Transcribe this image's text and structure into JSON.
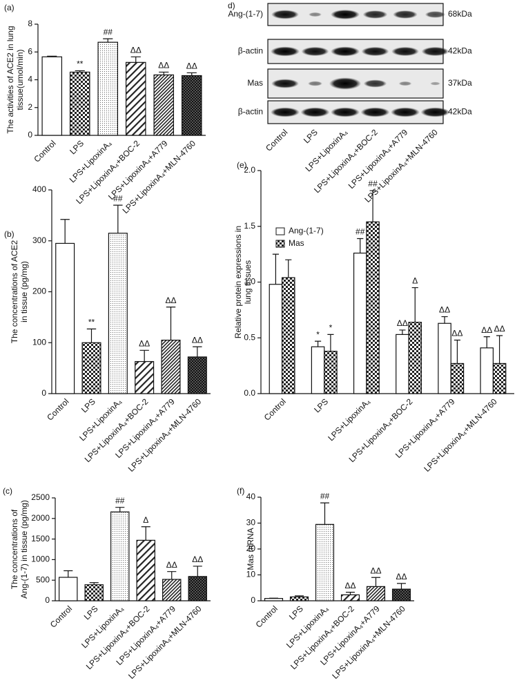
{
  "chart_data": [
    {
      "type": "bar",
      "panel": "(a)",
      "y_label": [
        "The activities of ACE2 in lung",
        "tissue(umol/min)"
      ],
      "categories": [
        "Control",
        "LPS",
        "LPS+LipoxinA₄",
        "LPS+LipoxinA₄+BOC-2",
        "LPS+LipoxinA₄+A779",
        "LPS+LipoxinA₄+MLN-4760"
      ],
      "values": [
        5.65,
        4.55,
        6.7,
        5.25,
        4.35,
        4.3
      ],
      "errors": [
        0.05,
        0.1,
        0.25,
        0.4,
        0.2,
        0.2
      ],
      "annotations": [
        null,
        "**",
        "##",
        "ΔΔ",
        "ΔΔ",
        "ΔΔ"
      ],
      "patterns": [
        "white",
        "check",
        "dots",
        "hatch",
        "dense-hatch",
        "dark-check"
      ],
      "ylim": [
        0,
        8
      ],
      "yticks": [
        0,
        2,
        4,
        6,
        8
      ]
    },
    {
      "type": "bar",
      "panel": "(b)",
      "y_label": [
        "The concentrations of ACE2",
        "in tissue (pg/mg)"
      ],
      "categories": [
        "Control",
        "LPS",
        "LPS+LipoxinA₄",
        "LPS+LipoxinA₄+BOC-2",
        "LPS+LipoxinA₄+A779",
        "LPS+LipoxinA₄+MLN-4760"
      ],
      "values": [
        295,
        100,
        315,
        63,
        105,
        72
      ],
      "errors": [
        47,
        27,
        55,
        22,
        65,
        20
      ],
      "annotations": [
        null,
        "**",
        "##",
        "ΔΔ",
        "ΔΔ",
        "ΔΔ"
      ],
      "patterns": [
        "white",
        "check",
        "dots",
        "hatch",
        "dense-hatch",
        "dark-check"
      ],
      "ylim": [
        0,
        400
      ],
      "yticks": [
        0,
        100,
        200,
        300,
        400
      ]
    },
    {
      "type": "bar",
      "panel": "(c)",
      "y_label": [
        "The concentrations of",
        "Ang-(1-7) in tissue (pg/mg)"
      ],
      "categories": [
        "Control",
        "LPS",
        "LPS+LipoxinA₄",
        "LPS+LipoxinA₄+BOC-2",
        "LPS+LipoxinA₄+A779",
        "LPS+LipoxinA₄+MLN-4760"
      ],
      "values": [
        570,
        390,
        2160,
        1470,
        520,
        590
      ],
      "errors": [
        160,
        50,
        110,
        330,
        190,
        250
      ],
      "annotations": [
        null,
        null,
        "##",
        "Δ",
        "ΔΔ",
        "ΔΔ"
      ],
      "patterns": [
        "white",
        "check",
        "dots",
        "hatch",
        "dense-hatch",
        "dark-check"
      ],
      "ylim": [
        0,
        2500
      ],
      "yticks": [
        0,
        500,
        1000,
        1500,
        2000,
        2500
      ]
    },
    {
      "type": "grouped_bar",
      "panel": "(e)",
      "y_label": [
        "Relative protein expressions in",
        "lung tissues"
      ],
      "categories": [
        "Control",
        "LPS",
        "LPS+LipoxinA₄",
        "LPS+LipoxinA₄+BOC-2",
        "LPS+LipoxinA₄+A779",
        "LPS+LipoxinA₄+MLN-4760"
      ],
      "series": [
        {
          "name": "Ang-(1-7)",
          "pattern": "white",
          "values": [
            0.98,
            0.42,
            1.26,
            0.53,
            0.63,
            0.41
          ],
          "errors": [
            0.27,
            0.05,
            0.13,
            0.04,
            0.06,
            0.1
          ],
          "annotations": [
            null,
            "*",
            "##",
            "ΔΔ",
            "ΔΔ",
            "ΔΔ"
          ]
        },
        {
          "name": "Mas",
          "pattern": "check",
          "values": [
            1.04,
            0.38,
            1.54,
            0.64,
            0.27,
            0.27
          ],
          "errors": [
            0.16,
            0.15,
            0.28,
            0.31,
            0.21,
            0.25
          ],
          "annotations": [
            null,
            "*",
            "##",
            "Δ",
            "ΔΔ",
            "ΔΔ"
          ]
        }
      ],
      "legend": "upper left",
      "ylim": [
        0,
        2
      ],
      "yticks": [
        {
          "value": 0,
          "label": "0.0"
        },
        0.5,
        {
          "value": 1,
          "label": "1.0"
        },
        1.5,
        {
          "value": 2,
          "label": "2.0"
        }
      ]
    },
    {
      "type": "bar",
      "panel": "(f)",
      "y_label": [
        "Mas mRNA"
      ],
      "categories": [
        "Control",
        "LPS",
        "LPS+LipoxinA₄",
        "LPS+LipoxinA₄+BOC-2",
        "LPS+LipoxinA₄+A779",
        "LPS+LipoxinA₄+MLN-4760"
      ],
      "values": [
        0.9,
        1.5,
        29.5,
        2.3,
        5.5,
        4.5
      ],
      "errors": [
        0.1,
        0.4,
        8.3,
        1.0,
        3.5,
        2.2
      ],
      "annotations": [
        null,
        null,
        "##",
        "ΔΔ",
        "ΔΔ",
        "ΔΔ"
      ],
      "patterns": [
        "white",
        "check",
        "dots",
        "hatch",
        "dense-hatch",
        "dark-check"
      ],
      "ylim": [
        0,
        40
      ],
      "yticks": [
        0,
        10,
        20,
        30,
        40
      ]
    }
  ],
  "blot": {
    "panel": "d)",
    "rows": [
      {
        "label": "Ang-(1-7)",
        "kda": "68kDa"
      },
      {
        "label": "β-actin",
        "kda": "42kDa"
      },
      {
        "label": "Mas",
        "kda": "37kDa"
      },
      {
        "label": "β-actin",
        "kda": "42kDa"
      }
    ],
    "lanes": [
      "Control",
      "LPS",
      "LPS+LipoxinA₄",
      "LPS+LipoxinA₄+BOC-2",
      "LPS+LipoxinA₄+A779",
      "LPS+LipoxinA₄+MLN-4760"
    ]
  }
}
